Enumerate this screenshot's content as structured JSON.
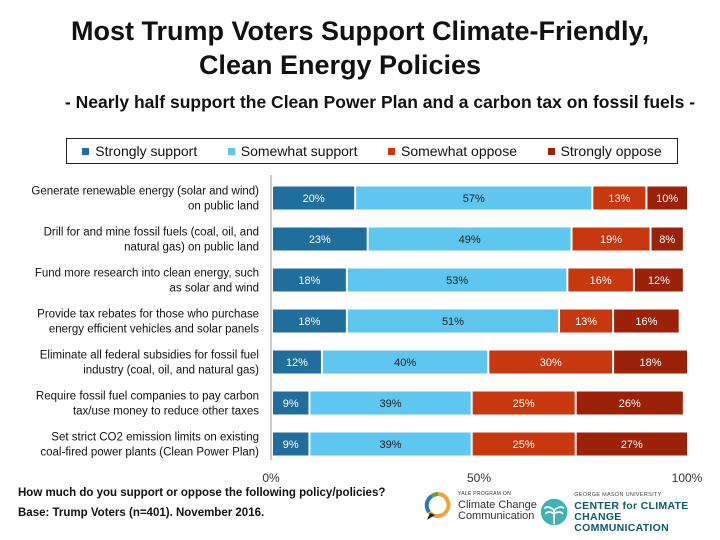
{
  "title_line1": "Most Trump Voters Support Climate-Friendly,",
  "title_line2": "Clean Energy Policies",
  "subtitle": "- Nearly half support the Clean Power Plan and a carbon tax on fossil fuels -",
  "question": "How much do you support or oppose the following policy/policies?",
  "base": "Base: Trump Voters (n=401). November 2016.",
  "logos": {
    "yale_small": "YALE PROGRAM ON",
    "yale_line1": "Climate Change",
    "yale_line2": "Communication",
    "gmu_small": "GEORGE MASON UNIVERSITY",
    "gmu_line1": "CENTER for CLIMATE CHANGE",
    "gmu_line2": "COMMUNICATION"
  },
  "colors": {
    "strongly_support": "#1f6e9c",
    "somewhat_support": "#5ec6ef",
    "somewhat_oppose": "#c7380f",
    "strongly_oppose": "#9b2209"
  },
  "chart_data": {
    "type": "bar",
    "orientation": "horizontal-stacked-100",
    "categories": [
      "Generate renewable energy (solar and wind)\non public land",
      "Drill for and mine fossil fuels (coal, oil, and\nnatural gas) on public land",
      "Fund more research into clean energy, such\nas solar and wind",
      "Provide tax rebates for those who purchase\nenergy efficient vehicles and solar panels",
      "Eliminate all federal subsidies for fossil fuel\nindustry (coal, oil, and natural gas)",
      "Require fossil fuel companies to pay carbon\ntax/use money to reduce other taxes",
      "Set strict CO2 emission limits on existing\ncoal-fired power plants (Clean Power Plan)"
    ],
    "series": [
      {
        "name": "Strongly support",
        "color": "#1f6e9c",
        "values": [
          20,
          23,
          18,
          18,
          12,
          9,
          9
        ]
      },
      {
        "name": "Somewhat support",
        "color": "#5ec6ef",
        "values": [
          57,
          49,
          53,
          51,
          40,
          39,
          39
        ]
      },
      {
        "name": "Somewhat oppose",
        "color": "#c7380f",
        "values": [
          13,
          19,
          16,
          13,
          30,
          25,
          25
        ]
      },
      {
        "name": "Strongly oppose",
        "color": "#9b2209",
        "values": [
          10,
          8,
          12,
          16,
          18,
          26,
          27
        ]
      }
    ],
    "xlim": [
      0,
      100
    ],
    "xticks": [
      "0%",
      "50%",
      "100%"
    ],
    "value_suffix": "%",
    "legend_position": "top",
    "grid": false
  }
}
